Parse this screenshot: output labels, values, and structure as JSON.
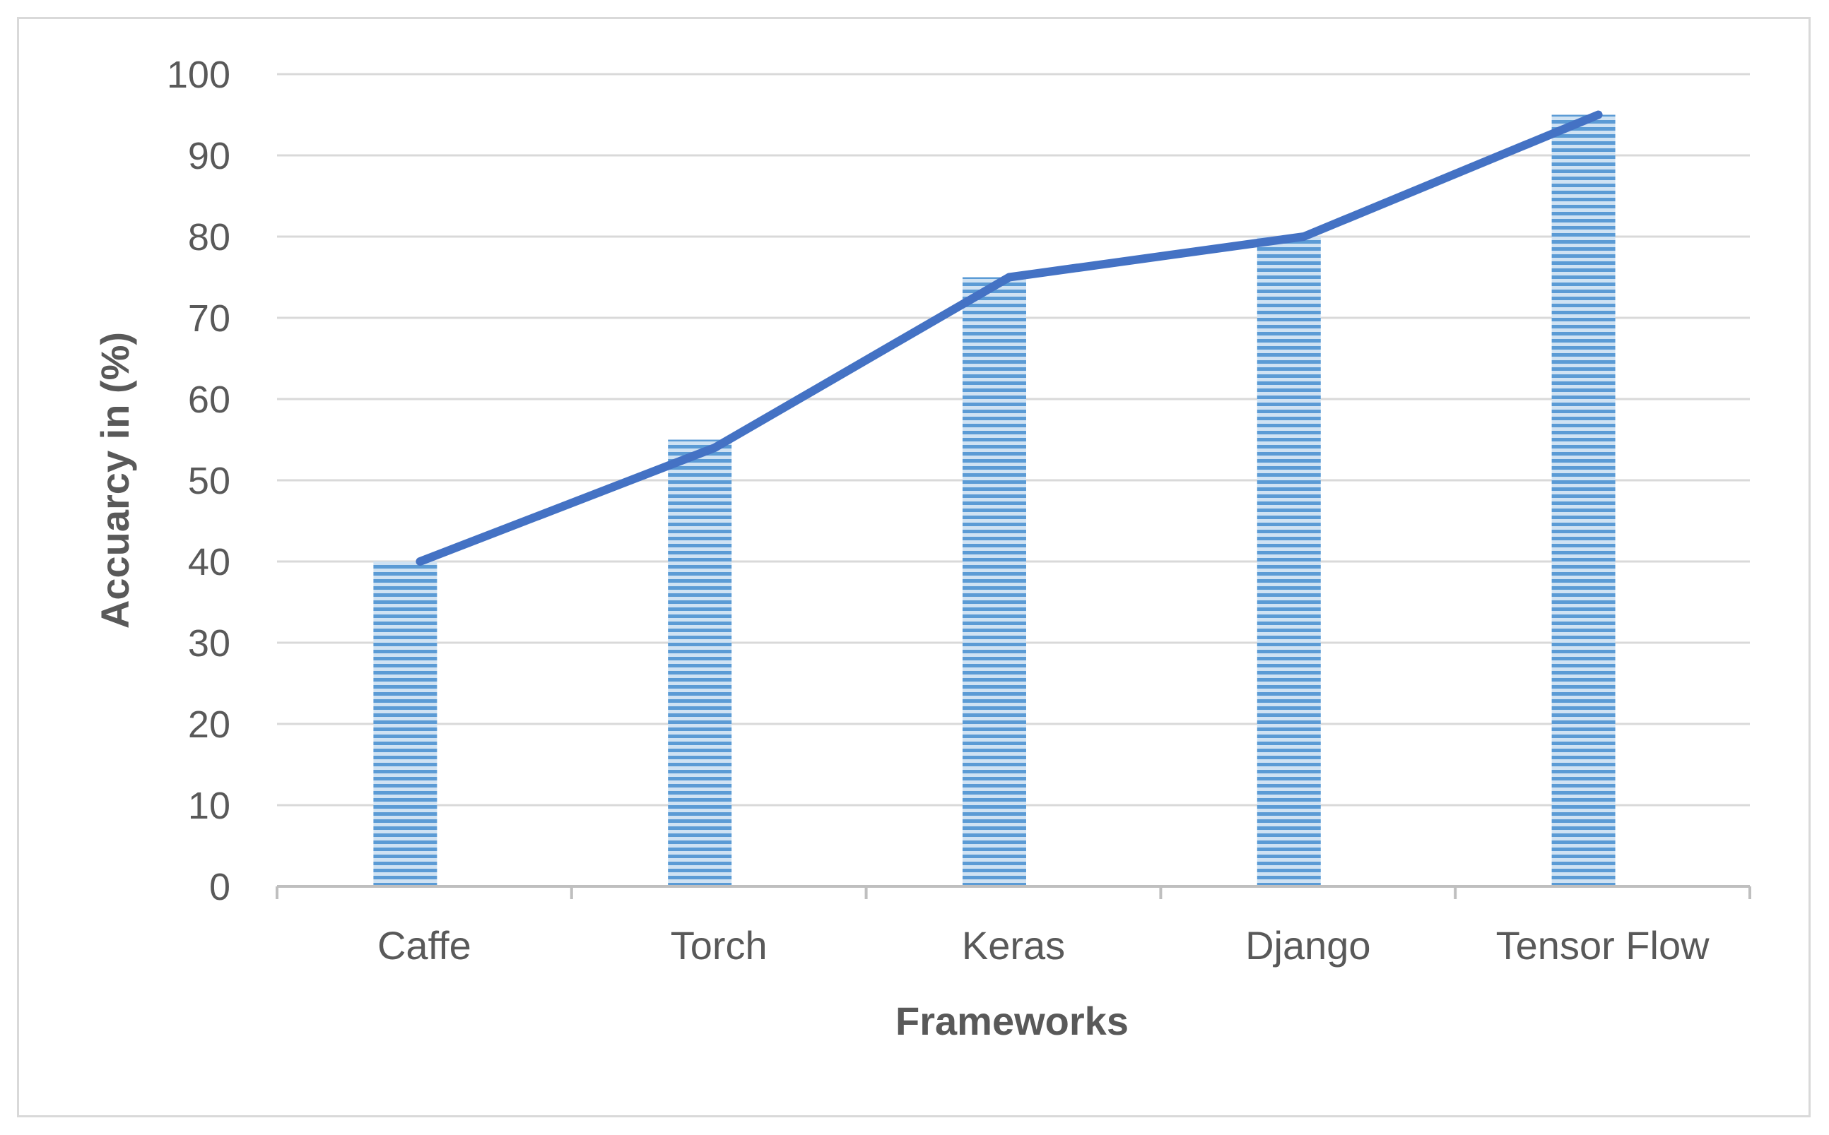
{
  "chart_data": {
    "type": "bar",
    "categories": [
      "Caffe",
      "Torch",
      "Keras",
      "Django",
      "Tensor Flow"
    ],
    "values": [
      40,
      55,
      75,
      80,
      95
    ],
    "line_values": [
      40,
      54,
      75,
      80,
      95
    ],
    "title": "",
    "xlabel": "Frameworks",
    "ylabel": "Accuarcy in (%)",
    "ylim": [
      0,
      100
    ],
    "yticks": [
      "0",
      "10",
      "20",
      "30",
      "40",
      "50",
      "60",
      "70",
      "80",
      "90",
      "100"
    ],
    "grid": true,
    "legend": "none",
    "colors": {
      "bar_fill": "#9dc3e6",
      "bar_stripe": "#5b9bd5",
      "line": "#4472c4",
      "grid": "#d9d9d9",
      "axis": "#bfbfbf"
    }
  }
}
